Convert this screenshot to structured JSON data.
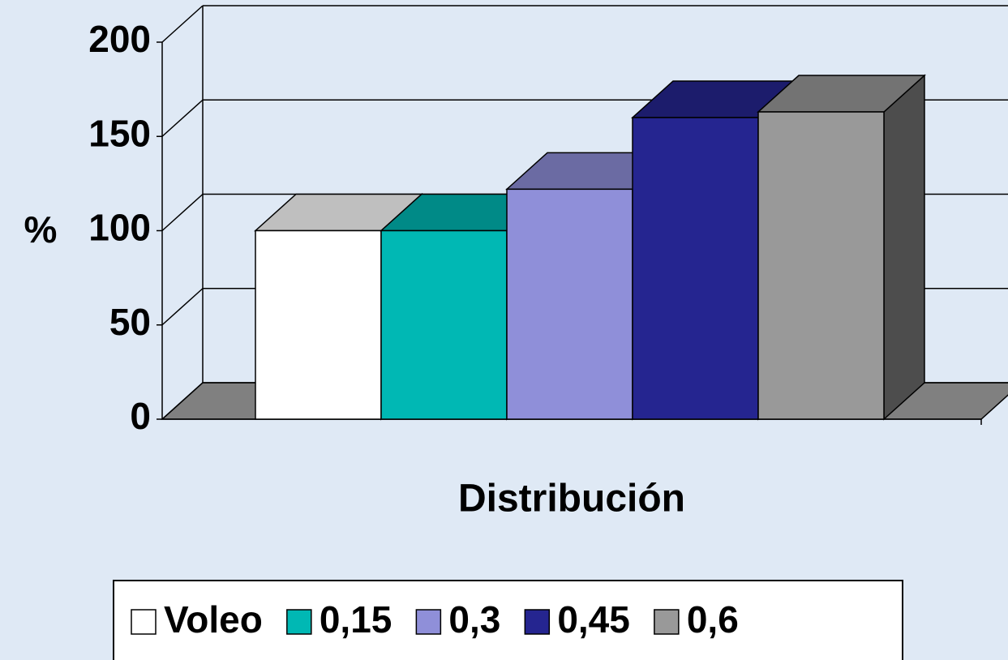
{
  "chart_data": {
    "type": "bar3d",
    "x_label": "Distribución",
    "y_label": "%",
    "categories": [
      null
    ],
    "series": [
      {
        "name": "Voleo",
        "color": "#ffffff",
        "values": [
          100
        ]
      },
      {
        "name": "0,15",
        "color": "#00b8b4",
        "values": [
          100
        ]
      },
      {
        "name": "0,3",
        "color": "#8f8fd9",
        "values": [
          122
        ]
      },
      {
        "name": "0,45",
        "color": "#252590",
        "values": [
          160
        ]
      },
      {
        "name": "0,6",
        "color": "#999999",
        "values": [
          163
        ]
      }
    ],
    "ylim": [
      0,
      200
    ],
    "yticks": [
      0,
      50,
      100,
      150,
      200
    ],
    "grid": true,
    "legend": "bottom"
  }
}
